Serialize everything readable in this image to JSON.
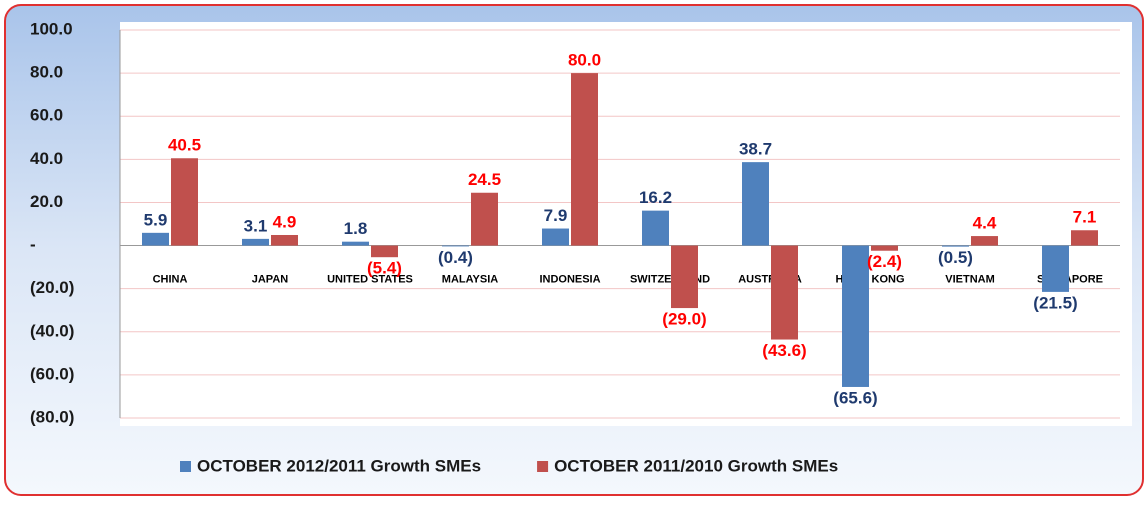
{
  "chart_data": {
    "type": "bar",
    "categories": [
      "CHINA",
      "JAPAN",
      "UNITED STATES",
      "MALAYSIA",
      "INDONESIA",
      "SWITZERLAND",
      "AUSTRALIA",
      "HONG KONG",
      "VIETNAM",
      "SINGAPORE"
    ],
    "series": [
      {
        "name": "OCTOBER 2012/2011 Growth SMEs",
        "color": "#4f81bd",
        "label_color": "#1f3a6e",
        "values": [
          5.9,
          3.1,
          1.8,
          -0.4,
          7.9,
          16.2,
          38.7,
          -65.6,
          -0.5,
          -21.5
        ],
        "value_labels": [
          "5.9",
          "3.1",
          "1.8",
          "(0.4)",
          "7.9",
          "16.2",
          "38.7",
          "(65.6)",
          "(0.5)",
          "(21.5)"
        ]
      },
      {
        "name": "OCTOBER 2011/2010 Growth SMEs",
        "color": "#c0504d",
        "label_color": "#ff0000",
        "values": [
          40.5,
          4.9,
          -5.4,
          24.5,
          80.0,
          -29.0,
          -43.6,
          -2.4,
          4.4,
          7.1
        ],
        "value_labels": [
          "40.5",
          "4.9",
          "(5.4)",
          "24.5",
          "80.0",
          "(29.0)",
          "(43.6)",
          "(2.4)",
          "4.4",
          "7.1"
        ]
      }
    ],
    "ylim": [
      -80,
      100
    ],
    "yticks": [
      {
        "value": -80,
        "label": "(80.0)"
      },
      {
        "value": -60,
        "label": "(60.0)"
      },
      {
        "value": -40,
        "label": "(40.0)"
      },
      {
        "value": -20,
        "label": "(20.0)"
      },
      {
        "value": 0,
        "label": "-"
      },
      {
        "value": 20,
        "label": "20.0"
      },
      {
        "value": 40,
        "label": "40.0"
      },
      {
        "value": 60,
        "label": "60.0"
      },
      {
        "value": 80,
        "label": "80.0"
      },
      {
        "value": 100,
        "label": "100.0"
      }
    ],
    "grid": true,
    "legend": "bottom"
  }
}
